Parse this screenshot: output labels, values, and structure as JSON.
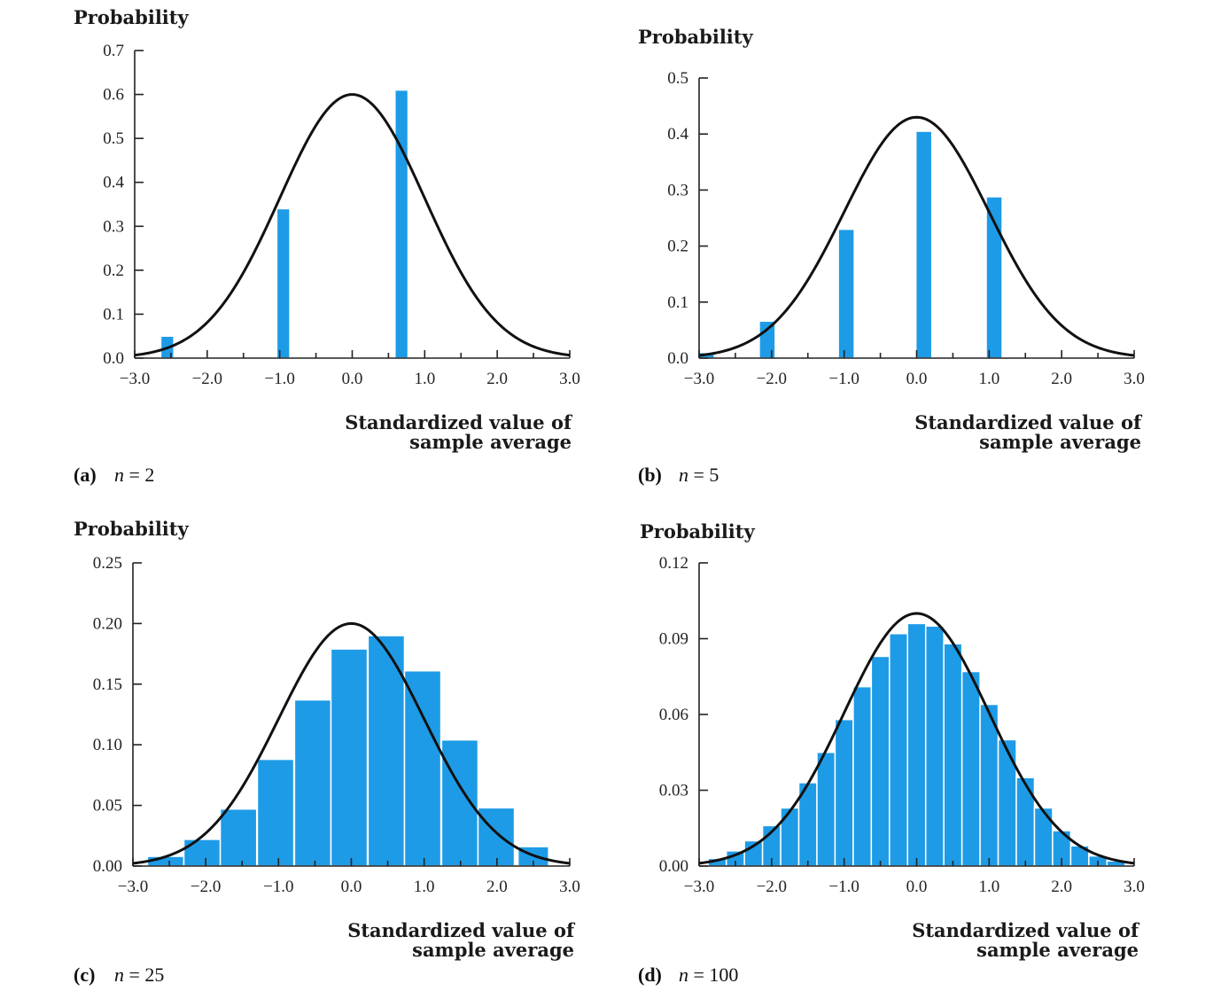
{
  "chart_data": [
    {
      "type": "bar",
      "ylabel": "Probability",
      "xlabel": [
        "Standardized value of",
        "sample average"
      ],
      "caption": {
        "letter": "(a)",
        "n": "n = 2"
      },
      "ylim": [
        0,
        0.7
      ],
      "xlim": [
        -3,
        3
      ],
      "yticks": [
        "0.0",
        "0.1",
        "0.2",
        "0.3",
        "0.4",
        "0.5",
        "0.6",
        "0.7"
      ],
      "xticks": [
        "−3.0",
        "−2.0",
        "−1.0",
        "0.0",
        "1.0",
        "2.0",
        "3.0"
      ],
      "bars": [
        {
          "x": -2.55,
          "width": 0.18,
          "value": 0.05
        },
        {
          "x": -0.95,
          "width": 0.18,
          "value": 0.34
        },
        {
          "x": 0.68,
          "width": 0.18,
          "value": 0.61
        }
      ],
      "curve_peak": 0.6
    },
    {
      "type": "bar",
      "ylabel": "Probability",
      "xlabel": [
        "Standardized value of",
        "sample average"
      ],
      "caption": {
        "letter": "(b)",
        "n": "n = 5"
      },
      "ylim": [
        0,
        0.5
      ],
      "xlim": [
        -3,
        3
      ],
      "yticks": [
        "0.0",
        "0.1",
        "0.2",
        "0.3",
        "0.4",
        "0.5"
      ],
      "xticks": [
        "−3.0",
        "−2.0",
        "−1.0",
        "0.0",
        "1.0",
        "2.0",
        "3.0"
      ],
      "bars": [
        {
          "x": -2.9,
          "width": 0.22,
          "value": 0.01
        },
        {
          "x": -2.06,
          "width": 0.22,
          "value": 0.066
        },
        {
          "x": -0.97,
          "width": 0.22,
          "value": 0.23
        },
        {
          "x": 0.1,
          "width": 0.22,
          "value": 0.405
        },
        {
          "x": 1.07,
          "width": 0.22,
          "value": 0.288
        }
      ],
      "curve_peak": 0.43
    },
    {
      "type": "bar",
      "ylabel": "Probability",
      "xlabel": [
        "Standardized value of",
        "sample average"
      ],
      "caption": {
        "letter": "(c)",
        "n": "n = 25"
      },
      "ylim": [
        0,
        0.25
      ],
      "xlim": [
        -3,
        3
      ],
      "yticks": [
        "0.00",
        "0.05",
        "0.10",
        "0.15",
        "0.20",
        "0.25"
      ],
      "xticks": [
        "−3.0",
        "−2.0",
        "−1.0",
        "0.0",
        "1.0",
        "2.0",
        "3.0"
      ],
      "bars": [
        {
          "x": -2.55,
          "width": 0.5,
          "value": 0.008
        },
        {
          "x": -2.05,
          "width": 0.5,
          "value": 0.022
        },
        {
          "x": -1.55,
          "width": 0.5,
          "value": 0.047
        },
        {
          "x": -1.04,
          "width": 0.5,
          "value": 0.088
        },
        {
          "x": -0.53,
          "width": 0.5,
          "value": 0.137
        },
        {
          "x": -0.03,
          "width": 0.5,
          "value": 0.179
        },
        {
          "x": 0.48,
          "width": 0.5,
          "value": 0.19
        },
        {
          "x": 0.98,
          "width": 0.5,
          "value": 0.161
        },
        {
          "x": 1.49,
          "width": 0.5,
          "value": 0.104
        },
        {
          "x": 1.99,
          "width": 0.5,
          "value": 0.048
        },
        {
          "x": 2.5,
          "width": 0.42,
          "value": 0.016
        }
      ],
      "curve_peak": 0.2
    },
    {
      "type": "bar",
      "ylabel": "Probability",
      "xlabel": [
        "Standardized value of",
        "sample average"
      ],
      "caption": {
        "letter": "(d)",
        "n": "n = 100"
      },
      "ylim": [
        0,
        0.12
      ],
      "xlim": [
        -3,
        3
      ],
      "yticks": [
        "0.00",
        "0.03",
        "0.06",
        "0.09",
        "0.12"
      ],
      "xticks": [
        "−3.0",
        "−2.0",
        "−1.0",
        "0.0",
        "1.0",
        "2.0",
        "3.0"
      ],
      "bars": [
        {
          "x": -2.75,
          "width": 0.25,
          "value": 0.003
        },
        {
          "x": -2.5,
          "width": 0.25,
          "value": 0.006
        },
        {
          "x": -2.25,
          "width": 0.25,
          "value": 0.01
        },
        {
          "x": -2.0,
          "width": 0.25,
          "value": 0.016
        },
        {
          "x": -1.75,
          "width": 0.25,
          "value": 0.023
        },
        {
          "x": -1.5,
          "width": 0.25,
          "value": 0.033
        },
        {
          "x": -1.25,
          "width": 0.25,
          "value": 0.045
        },
        {
          "x": -1.0,
          "width": 0.25,
          "value": 0.058
        },
        {
          "x": -0.75,
          "width": 0.25,
          "value": 0.071
        },
        {
          "x": -0.5,
          "width": 0.25,
          "value": 0.083
        },
        {
          "x": -0.25,
          "width": 0.25,
          "value": 0.092
        },
        {
          "x": 0.0,
          "width": 0.25,
          "value": 0.096
        },
        {
          "x": 0.25,
          "width": 0.25,
          "value": 0.095
        },
        {
          "x": 0.5,
          "width": 0.25,
          "value": 0.088
        },
        {
          "x": 0.75,
          "width": 0.25,
          "value": 0.077
        },
        {
          "x": 1.0,
          "width": 0.25,
          "value": 0.064
        },
        {
          "x": 1.25,
          "width": 0.25,
          "value": 0.05
        },
        {
          "x": 1.5,
          "width": 0.25,
          "value": 0.035
        },
        {
          "x": 1.75,
          "width": 0.25,
          "value": 0.023
        },
        {
          "x": 2.0,
          "width": 0.25,
          "value": 0.014
        },
        {
          "x": 2.25,
          "width": 0.25,
          "value": 0.008
        },
        {
          "x": 2.5,
          "width": 0.25,
          "value": 0.004
        },
        {
          "x": 2.75,
          "width": 0.25,
          "value": 0.002
        }
      ],
      "curve_peak": 0.1
    }
  ],
  "colors": {
    "bar": "#1e9be6",
    "curve": "#111111",
    "axis": "#222222"
  }
}
